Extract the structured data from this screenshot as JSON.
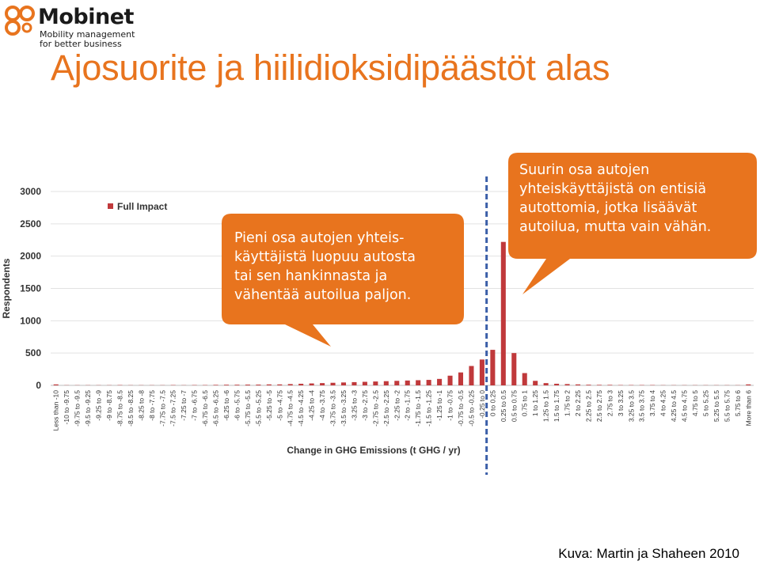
{
  "brand": {
    "name": "Mobinet",
    "tagline_line1": "Mobility management",
    "tagline_line2": "for better business",
    "color": "#e8741e"
  },
  "slide": {
    "title": "Ajosuorite ja hiilidioksidipäästöt alas",
    "source": "Kuva: Martin ja Shaheen 2010"
  },
  "callouts": {
    "left": [
      "Pieni osa autojen yhteis-",
      "käyttäjistä luopuu autosta",
      "tai sen hankinnasta ja",
      "vähentää autoilua paljon."
    ],
    "right": [
      "Suurin osa autojen",
      "yhteiskäyttäjistä on entisiä",
      "autottomia, jotka lisäävät",
      "autoilua, mutta vain vähän."
    ],
    "color": "#e8741e"
  },
  "chart_data": {
    "type": "bar",
    "title": "",
    "xlabel": "Change in GHG Emissions (t GHG / yr)",
    "ylabel": "Respondents",
    "ylim": [
      0,
      3000
    ],
    "yticks": [
      0,
      500,
      1000,
      1500,
      2000,
      2500,
      3000
    ],
    "grid": true,
    "legend_position": "top-left",
    "bar_color": "#c0393b",
    "divider_color": "#3b5fa8",
    "categories": [
      "Less than -10",
      "-10 to -9.75",
      "-9.75 to -9.5",
      "-9.5 to -9.25",
      "-9.25 to -9",
      "-9 to -8.75",
      "-8.75 to -8.5",
      "-8.5 to -8.25",
      "-8.25 to -8",
      "-8 to -7.75",
      "-7.75 to -7.5",
      "-7.5 to -7.25",
      "-7.25 to -7",
      "-7 to -6.75",
      "-6.75 to -6.5",
      "-6.5 to -6.25",
      "-6.25 to -6",
      "-6 to -5.75",
      "-5.75 to -5.5",
      "-5.5 to -5.25",
      "-5.25 to -5",
      "-5 to -4.75",
      "-4.75 to -4.5",
      "-4.5 to -4.25",
      "-4.25 to -4",
      "-4 to -3.75",
      "-3.75 to -3.5",
      "-3.5 to -3.25",
      "-3.25 to -3",
      "-3 to -2.75",
      "-2.75 to -2.5",
      "-2.5 to -2.25",
      "-2.25 to -2",
      "-2 to -1.75",
      "-1.75 to -1.5",
      "-1.5 to -1.25",
      "-1.25 to -1",
      "-1 to -0.75",
      "-0.75 to -0.5",
      "-0.5 to -0.25",
      "-0.25 to 0",
      "0 to 0.25",
      "0.25 to 0.5",
      "0.5 to 0.75",
      "0.75 to 1",
      "1 to 1.25",
      "1.25 to 1.5",
      "1.5 to 1.75",
      "1.75 to 2",
      "2 to 2.25",
      "2.25 to 2.5",
      "2.5 to 2.75",
      "2.75 to 3",
      "3 to 3.25",
      "3.25 to 3.5",
      "3.5 to 3.75",
      "3.75 to 4",
      "4 to 4.25",
      "4.25 to 4.5",
      "4.5 to 4.75",
      "4.75 to 5",
      "5 to 5.25",
      "5.25 to 5.5",
      "5.5 to 5.75",
      "5.75 to 6",
      "More than 6"
    ],
    "series": [
      {
        "name": "Full Impact",
        "values": [
          15,
          3,
          3,
          3,
          3,
          3,
          5,
          3,
          3,
          3,
          3,
          5,
          3,
          5,
          5,
          8,
          10,
          10,
          12,
          12,
          15,
          15,
          20,
          25,
          30,
          35,
          40,
          45,
          50,
          55,
          60,
          65,
          70,
          75,
          80,
          85,
          100,
          150,
          200,
          300,
          400,
          550,
          2220,
          500,
          190,
          70,
          35,
          25,
          20,
          15,
          10,
          8,
          8,
          5,
          5,
          5,
          5,
          3,
          3,
          3,
          3,
          3,
          3,
          3,
          3,
          15
        ]
      }
    ],
    "x_tick_labels": [
      "Less than -10",
      "-10 to -9.75",
      "-9.75 to -9.5",
      "-9.5 to -9.25",
      "-9.25 to -9",
      "-9 to -8.75",
      "-8.75 to -8.5",
      "-8.5 to -8.25",
      "-8.25 to -8",
      "-8 to -7.75",
      "-7.75 to -7.5",
      "-7.5 to -7.25",
      "-7.25 to -7",
      "-7 to -6.75",
      "-6.75 to -6.5",
      "-6.5 to -6.25",
      "-6.25 to -6",
      "-6 to -5.75",
      "-5.75 to -5.5",
      "-5.5 to -5.25",
      "-5.25 to -5",
      "-5 to -4.75",
      "-4.75 to -4.5",
      "-4.5 to -4.25",
      "-4.25 to -4",
      "-4 to -3.75",
      "-3.75 to -3.5",
      "-3.5 to -3.25",
      "-3.25 to -3",
      "-3 to -2.75",
      "-2.75 to -2.5",
      "-2.5 to -2.25",
      "-2.25 to -2",
      "-2 to -1.75",
      "-1.75 to -1.5",
      "-1.5 to -1.25",
      "-1.25 to -1",
      "-1 to -0.75",
      "-0.75 to -0.5",
      "-0.5 to -0.25",
      "-0.25 to 0",
      "0 to 0.25",
      "0.25 to 0.5",
      "0.5 to 0.75",
      "0.75 to 1",
      "1 to 1.25",
      "1.25 to 1.5",
      "1.5 to 1.75",
      "1.75 to 2",
      "2 to 2.25",
      "2.25 to 2.5",
      "2.5 to 2.75",
      "2.75 to 3",
      "3 to 3.25",
      "3.25 to 3.5",
      "3.5 to 3.75",
      "3.75 to 4",
      "4 to 4.25",
      "4.25 to 4.5",
      "4.5 to 4.75",
      "4.75 to 5",
      "5 to 5.25",
      "5.25 to 5.5",
      "5.5 to 5.75",
      "5.75 to 6",
      "More than 6"
    ]
  }
}
